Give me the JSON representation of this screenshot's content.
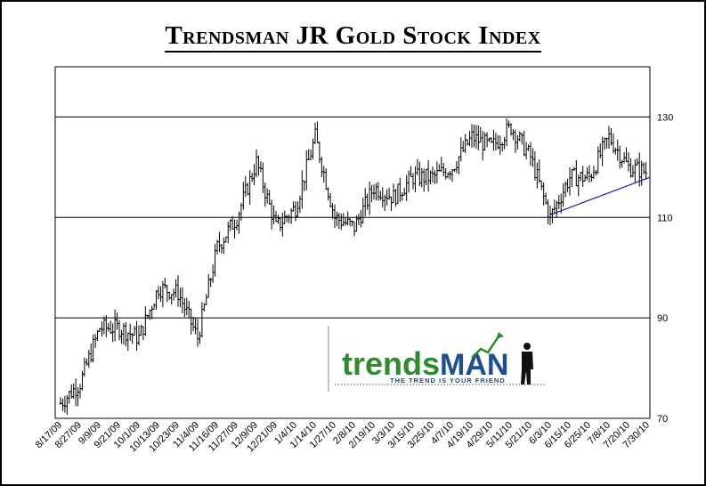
{
  "chart_data": {
    "type": "candlestick",
    "title": "Trendsman JR Gold Stock Index",
    "xlabel": "",
    "ylabel": "",
    "ylim": [
      70,
      140
    ],
    "yticks": [
      70,
      90,
      110,
      130
    ],
    "grid": "horizontal",
    "x_tick_labels": [
      "8/17/09",
      "8/27/09",
      "9/9/09",
      "9/21/09",
      "10/1/09",
      "10/13/09",
      "10/23/09",
      "11/4/09",
      "11/16/09",
      "11/27/09",
      "12/9/09",
      "12/21/09",
      "1/4/10",
      "1/14/10",
      "1/27/10",
      "2/8/10",
      "2/19/10",
      "3/3/10",
      "3/15/10",
      "3/25/10",
      "4/7/10",
      "4/19/10",
      "4/29/10",
      "5/11/10",
      "5/21/10",
      "6/3/10",
      "6/15/10",
      "6/25/10",
      "7/8/10",
      "7/20/10",
      "7/30/10"
    ],
    "series": [
      {
        "values": [
          {
            "date": "8/17/09",
            "close": 73
          },
          {
            "date": "8/27/09",
            "close": 77
          },
          {
            "date": "9/9/09",
            "close": 88
          },
          {
            "date": "9/21/09",
            "close": 88
          },
          {
            "date": "10/1/09",
            "close": 86
          },
          {
            "date": "10/13/09",
            "close": 96
          },
          {
            "date": "10/23/09",
            "close": 95
          },
          {
            "date": "11/4/09",
            "close": 86
          },
          {
            "date": "11/16/09",
            "close": 104
          },
          {
            "date": "11/27/09",
            "close": 110
          },
          {
            "date": "12/9/09",
            "close": 121
          },
          {
            "date": "12/21/09",
            "close": 108
          },
          {
            "date": "1/4/10",
            "close": 112
          },
          {
            "date": "1/14/10",
            "close": 126
          },
          {
            "date": "1/27/10",
            "close": 110
          },
          {
            "date": "2/8/10",
            "close": 108
          },
          {
            "date": "2/19/10",
            "close": 116
          },
          {
            "date": "3/3/10",
            "close": 114
          },
          {
            "date": "3/15/10",
            "close": 118
          },
          {
            "date": "3/25/10",
            "close": 118
          },
          {
            "date": "4/7/10",
            "close": 120
          },
          {
            "date": "4/19/10",
            "close": 126
          },
          {
            "date": "4/29/10",
            "close": 124
          },
          {
            "date": "5/11/10",
            "close": 128
          },
          {
            "date": "5/21/10",
            "close": 122
          },
          {
            "date": "6/3/10",
            "close": 110
          },
          {
            "date": "6/15/10",
            "close": 118
          },
          {
            "date": "6/25/10",
            "close": 118
          },
          {
            "date": "7/8/10",
            "close": 126
          },
          {
            "date": "7/20/10",
            "close": 120
          },
          {
            "date": "7/30/10",
            "close": 119
          }
        ]
      }
    ],
    "trendline": {
      "color": "#1a1aa8",
      "from": {
        "date": "6/3/10",
        "value": 110.5
      },
      "to": {
        "date": "7/30/10",
        "value": 118
      }
    },
    "colors": {
      "candles": "#000000",
      "grid": "#000000",
      "trendline": "#1a1aa8",
      "logo_green": "#2e8b2e"
    }
  },
  "logo": {
    "text_a": "trends",
    "text_b": "MAN",
    "tagline": "THE TREND IS YOUR FRIEND"
  }
}
